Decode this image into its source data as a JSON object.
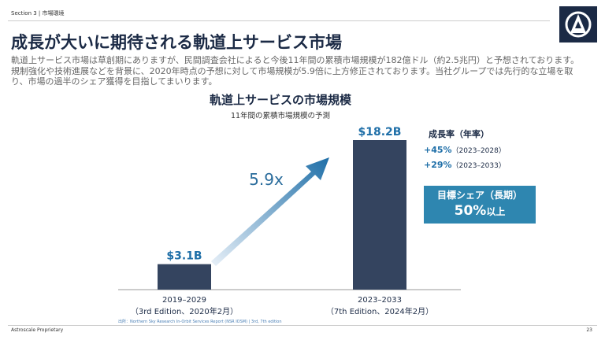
{
  "header": {
    "section": "Section 3 | 市場環境"
  },
  "title": "成長が大いに期待される軌道上サービス市場",
  "body": "軌道上サービス市場は草創期にありますが、民間調査会社によると今後11年間の累積市場規模が182億ドル（約2.5兆円）と予想されております。規制強化や技術進展などを背景に、2020年時点の予想に対して市場規模が5.9倍に上方修正されております。当社グループでは先行的な立場を取り、市場の過半のシェア獲得を目指してまいります。",
  "chart_data": {
    "type": "bar",
    "title": "軌道上サービスの市場規模",
    "subtitle": "11年間の累積市場規模の予測",
    "categories": [
      "2019–2029",
      "2023–2033"
    ],
    "category_notes": [
      "（3rd Edition、2020年2月）",
      "（7th Edition、2024年2月）"
    ],
    "values": [
      3.1,
      18.2
    ],
    "value_labels": [
      "$3.1B",
      "$18.2B"
    ],
    "color": "#34445f",
    "annotation": "5.9x",
    "source": "出所：Northern Sky Research In-Orbit Services Report (NSR IOSM) | 3rd, 7th edition"
  },
  "growth": {
    "title": "成長率（年率）",
    "items": [
      {
        "rate": "+45%",
        "period": "（2023–2028）"
      },
      {
        "rate": "+29%",
        "period": "（2023–2033）"
      }
    ]
  },
  "target": {
    "label": "目標シェア（長期）",
    "value": "50%",
    "suffix": "以上"
  },
  "footer": {
    "left": "Astroscale Proprietary",
    "page": "23"
  }
}
